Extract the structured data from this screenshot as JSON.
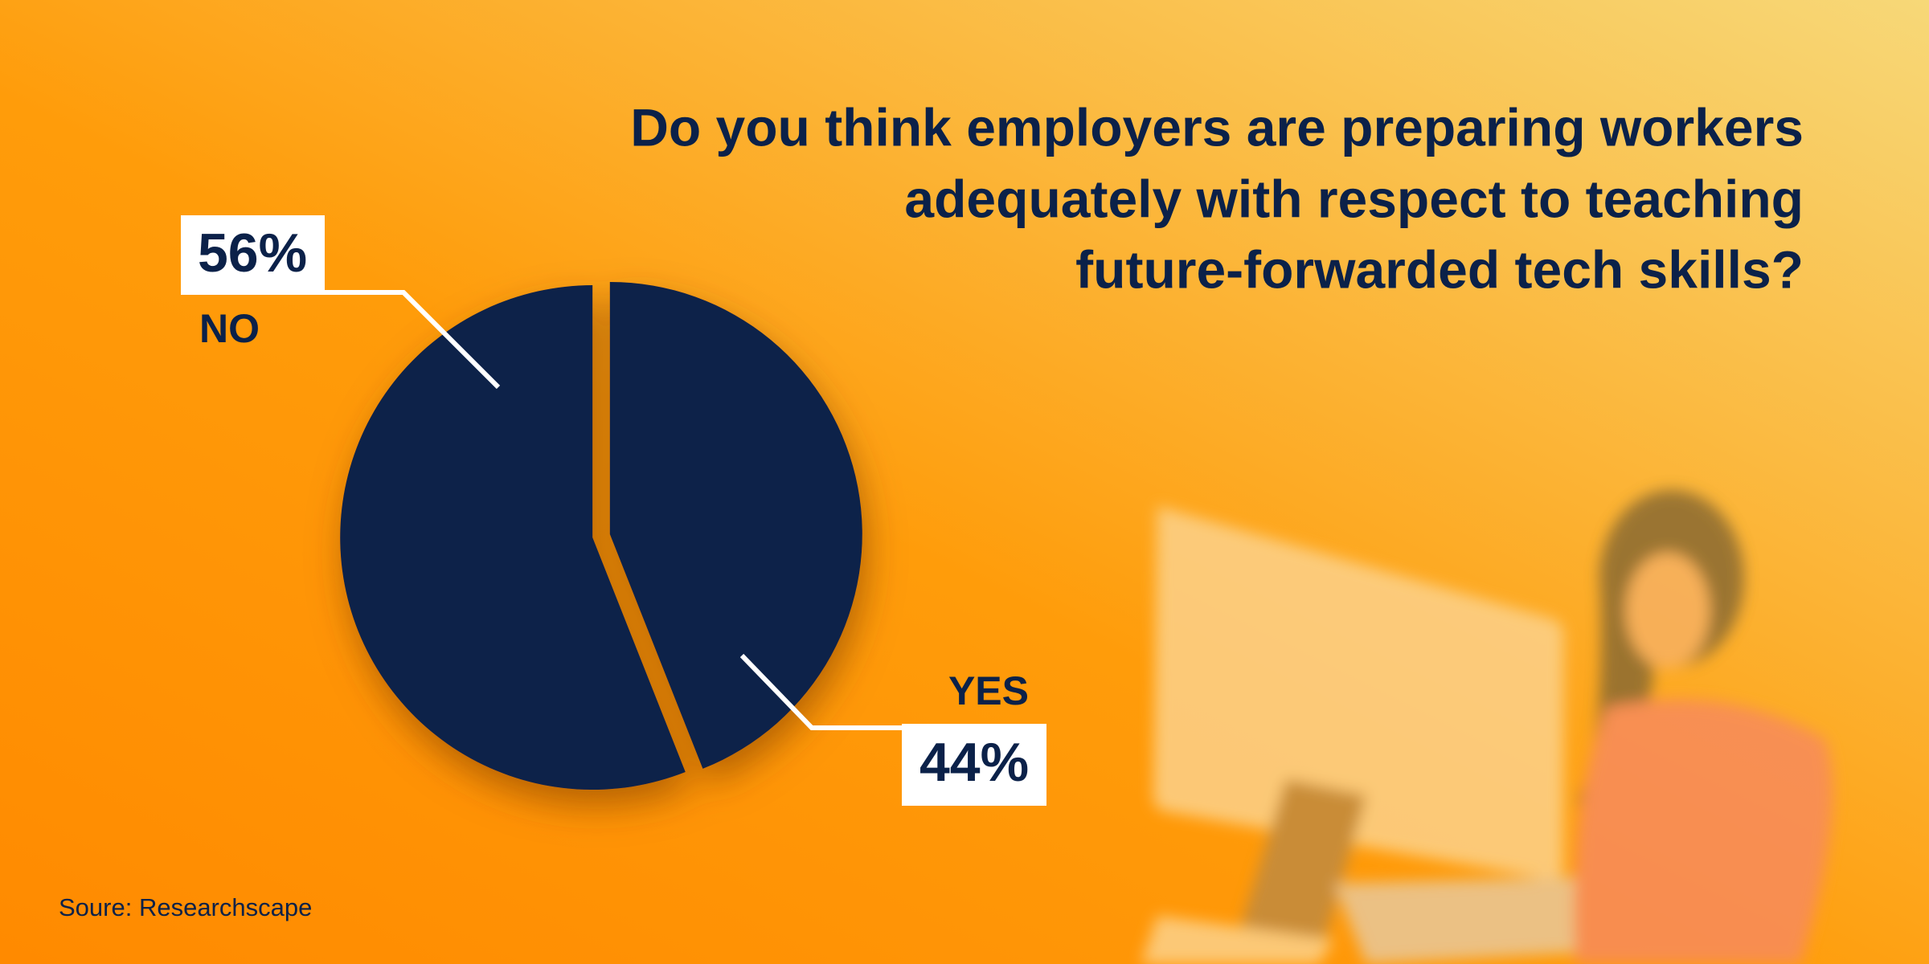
{
  "chart_data": {
    "type": "pie",
    "title": [
      "Do you think employers are preparing workers",
      "adequately with respect to teaching",
      "future-forwarded tech skills?"
    ],
    "categories": [
      "YES",
      "NO"
    ],
    "values": [
      44,
      56
    ],
    "value_labels": [
      "44%",
      "56%"
    ],
    "color": "#0b2149",
    "source": "Soure: Researchscape"
  }
}
